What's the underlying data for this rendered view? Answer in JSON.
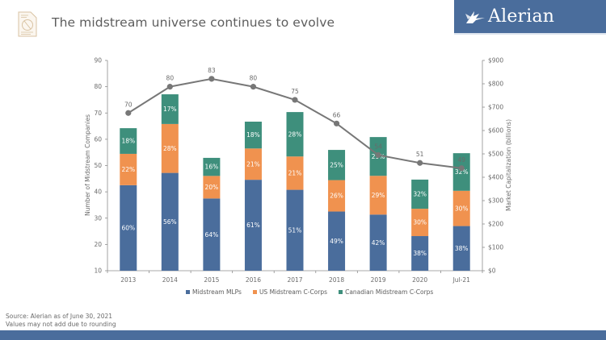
{
  "header": {
    "title": "The midstream universe continues to evolve",
    "brand_name": "Alerian",
    "brand_color": "#4a6d9c",
    "logo_icon": "document-pie-chart-icon"
  },
  "footer": {
    "source": "Source: Alerian as of June 30, 2021",
    "note": "Values may not add due to rounding"
  },
  "chart_data": {
    "type": "bar",
    "subtype": "stacked-bar-with-line-overlay",
    "title": "The midstream universe continues to evolve",
    "categories": [
      "2013",
      "2014",
      "2015",
      "2016",
      "2017",
      "2018",
      "2019",
      "2020",
      "Jul-21"
    ],
    "bar_axis": "right",
    "bar_totals_estimated": [
      610,
      755,
      483,
      638,
      679,
      517,
      572,
      390,
      503
    ],
    "series": [
      {
        "name": "Midstream MLPs",
        "color": "#4a6d9c",
        "type": "bar",
        "percent_labels": [
          "60%",
          "56%",
          "64%",
          "61%",
          "51%",
          "49%",
          "42%",
          "38%",
          "38%"
        ],
        "percent_values": [
          60,
          56,
          64,
          61,
          51,
          49,
          42,
          38,
          38
        ]
      },
      {
        "name": "US Midstream C-Corps",
        "color": "#f0924f",
        "type": "bar",
        "percent_labels": [
          "22%",
          "28%",
          "20%",
          "21%",
          "21%",
          "26%",
          "29%",
          "30%",
          "30%"
        ],
        "percent_values": [
          22,
          28,
          20,
          21,
          21,
          26,
          29,
          30,
          30
        ]
      },
      {
        "name": "Canadian Midstream C-Corps",
        "color": "#3e8f7c",
        "type": "bar",
        "percent_labels": [
          "18%",
          "17%",
          "16%",
          "18%",
          "28%",
          "25%",
          "29%",
          "32%",
          "32%"
        ],
        "percent_values": [
          18,
          17,
          16,
          18,
          28,
          25,
          29,
          32,
          32
        ]
      },
      {
        "name": "Number of Midstream Companies",
        "color": "#777777",
        "type": "line",
        "axis": "left",
        "values": [
          70,
          80,
          83,
          80,
          75,
          66,
          54,
          51,
          49
        ]
      }
    ],
    "left_axis": {
      "label": "Number of Midstream Companies",
      "range": [
        10,
        90
      ],
      "ticks": [
        "10",
        "20",
        "30",
        "40",
        "50",
        "60",
        "70",
        "80",
        "90"
      ]
    },
    "right_axis": {
      "label": "Market Capitalization (billions)",
      "range": [
        0,
        900
      ],
      "ticks": [
        "$0",
        "$100",
        "$200",
        "$300",
        "$400",
        "$500",
        "$600",
        "$700",
        "$800",
        "$900"
      ]
    },
    "legend": {
      "position": "bottom",
      "entries": [
        "Midstream MLPs",
        "US Midstream C-Corps",
        "Canadian Midstream C-Corps"
      ]
    },
    "grid": false
  }
}
